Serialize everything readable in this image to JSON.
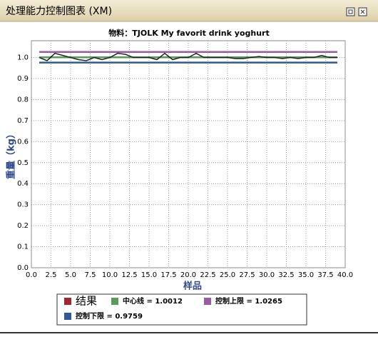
{
  "window": {
    "title": "处理能力控制图表 (XM)"
  },
  "chart_data": {
    "type": "line",
    "title": "物料：TJOLK My favorit drink yoghurt",
    "x_label": "样品",
    "y_label": "重量（kg）",
    "x": [
      1,
      2,
      3,
      4,
      5,
      6,
      7,
      8,
      9,
      10,
      11,
      12,
      13,
      14,
      15,
      16,
      17,
      18,
      19,
      20,
      21,
      22,
      23,
      24,
      25,
      26,
      27,
      28,
      29,
      30,
      31,
      32,
      33,
      34,
      35,
      36,
      37,
      38,
      39
    ],
    "series": [
      {
        "name": "结果",
        "color": "#a3262e",
        "values": [
          1.0,
          0.985,
          1.02,
          1.01,
          1.0,
          0.99,
          0.985,
          1.0,
          0.99,
          1.0,
          1.02,
          1.015,
          1.0,
          1.0,
          1.0,
          0.99,
          1.02,
          0.99,
          1.0,
          1.0,
          1.02,
          1.0,
          1.0,
          1.0,
          1.0,
          0.995,
          0.995,
          1.0,
          1.005,
          1.0,
          1.0,
          0.995,
          1.0,
          0.995,
          1.0,
          1.0,
          1.01,
          1.0,
          1.0
        ]
      }
    ],
    "reference_lines": [
      {
        "name": "中心线 = 1.0012",
        "value": 1.0012,
        "color": "#5a9a5a"
      },
      {
        "name": "控制上限 = 1.0265",
        "value": 1.0265,
        "color": "#9a5aa0"
      },
      {
        "name": "控制下限 = 0.9759",
        "value": 0.9759,
        "color": "#2e5a9a"
      }
    ],
    "xlim": [
      0,
      40
    ],
    "xticks": [
      {
        "value": 0,
        "label": "0.0"
      },
      {
        "value": 2.5,
        "label": "2.5"
      },
      {
        "value": 5,
        "label": "5.0"
      },
      {
        "value": 7.5,
        "label": "7.5"
      },
      {
        "value": 10,
        "label": "10.0"
      },
      {
        "value": 12.5,
        "label": "12.5"
      },
      {
        "value": 15,
        "label": "15.0"
      },
      {
        "value": 17.5,
        "label": "17.5"
      },
      {
        "value": 20,
        "label": "20.0"
      },
      {
        "value": 22.5,
        "label": "22.5"
      },
      {
        "value": 25,
        "label": "25.0"
      },
      {
        "value": 27.5,
        "label": "27.5"
      },
      {
        "value": 30,
        "label": "30.0"
      },
      {
        "value": 32.5,
        "label": "32.5"
      },
      {
        "value": 35,
        "label": "35.0"
      },
      {
        "value": 37.5,
        "label": "37.5"
      },
      {
        "value": 40,
        "label": "40.0"
      }
    ],
    "ylim": [
      0,
      1.08
    ],
    "yticks": [
      {
        "value": 0,
        "label": "0.0"
      },
      0.1,
      0.2,
      0.3,
      0.4,
      0.5,
      0.6,
      0.7,
      0.8,
      0.9,
      {
        "value": 1,
        "label": "1.0"
      }
    ],
    "grid": true
  }
}
